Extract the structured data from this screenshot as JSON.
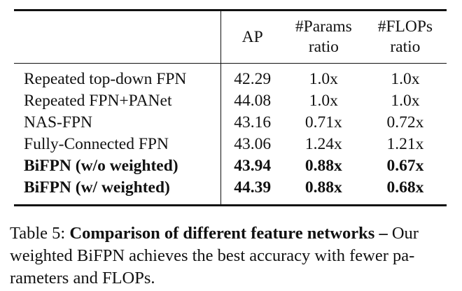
{
  "table": {
    "headers": {
      "method": "",
      "ap": "AP",
      "params_line1": "#Params",
      "params_line2": "ratio",
      "flops_line1": "#FLOPs",
      "flops_line2": "ratio"
    },
    "rows": [
      {
        "method": "Repeated top-down FPN",
        "ap": "42.29",
        "params": "1.0x",
        "flops": "1.0x",
        "bold": false
      },
      {
        "method": "Repeated FPN+PANet",
        "ap": "44.08",
        "params": "1.0x",
        "flops": "1.0x",
        "bold": false
      },
      {
        "method": "NAS-FPN",
        "ap": "43.16",
        "params": "0.71x",
        "flops": "0.72x",
        "bold": false
      },
      {
        "method": "Fully-Connected FPN",
        "ap": "43.06",
        "params": "1.24x",
        "flops": "1.21x",
        "bold": false
      },
      {
        "method": "BiFPN (w/o weighted)",
        "ap": "43.94",
        "params": "0.88x",
        "flops": "0.67x",
        "bold": true
      },
      {
        "method": "BiFPN (w/ weighted)",
        "ap": "44.39",
        "params": "0.88x",
        "flops": "0.68x",
        "bold": true
      }
    ]
  },
  "caption": {
    "label": "Table 5: ",
    "bold_text": "Comparison of different feature networks –",
    "text_line1_rest": " Our",
    "text_line2": "weighted BiFPN achieves the best accuracy with fewer pa-",
    "text_line3": "rameters and FLOPs."
  }
}
